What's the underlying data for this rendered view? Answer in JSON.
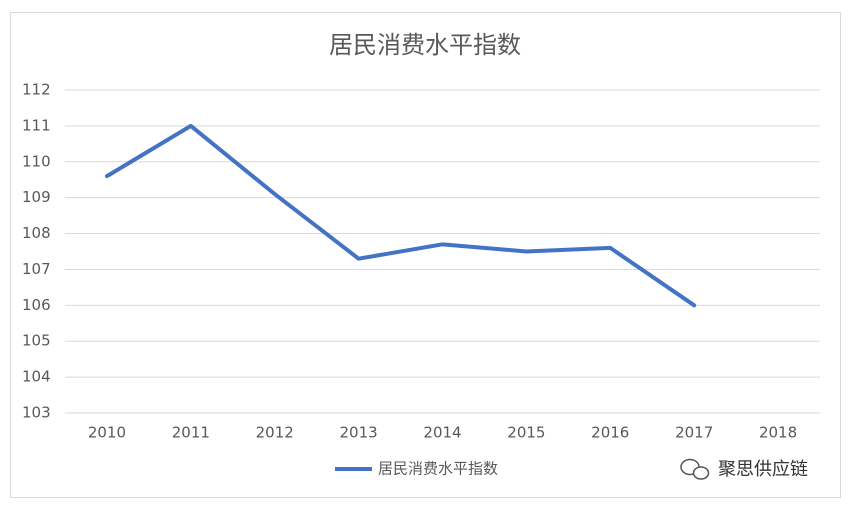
{
  "chart_data": {
    "type": "line",
    "title": "居民消费水平指数",
    "categories": [
      "2010",
      "2011",
      "2012",
      "2013",
      "2014",
      "2015",
      "2016",
      "2017",
      "2018"
    ],
    "series": [
      {
        "name": "居民消费水平指数",
        "color": "#4472c4",
        "values": [
          109.6,
          111.0,
          109.1,
          107.3,
          107.7,
          107.5,
          107.6,
          106.0,
          null
        ]
      }
    ],
    "ylim": [
      103,
      112
    ],
    "yticks": [
      103,
      104,
      105,
      106,
      107,
      108,
      109,
      110,
      111,
      112
    ],
    "grid": true,
    "legend": "bottom"
  },
  "watermark": "聚思供应链"
}
